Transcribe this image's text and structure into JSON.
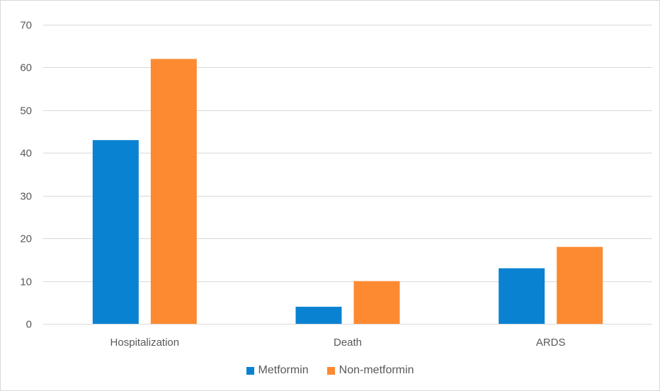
{
  "chart_data": {
    "type": "bar",
    "title": "",
    "xlabel": "",
    "ylabel": "",
    "categories": [
      "Hospitalization",
      "Death",
      "ARDS"
    ],
    "series": [
      {
        "name": "Metformin",
        "color": "#0a82d2",
        "values": [
          43,
          4,
          13
        ]
      },
      {
        "name": "Non-metformin",
        "color": "#fd8a30",
        "values": [
          62,
          10,
          18
        ]
      }
    ],
    "ylim": [
      0,
      70
    ],
    "yticks": [
      0,
      10,
      20,
      30,
      40,
      50,
      60,
      70
    ],
    "grid": true,
    "legend_position": "bottom"
  }
}
